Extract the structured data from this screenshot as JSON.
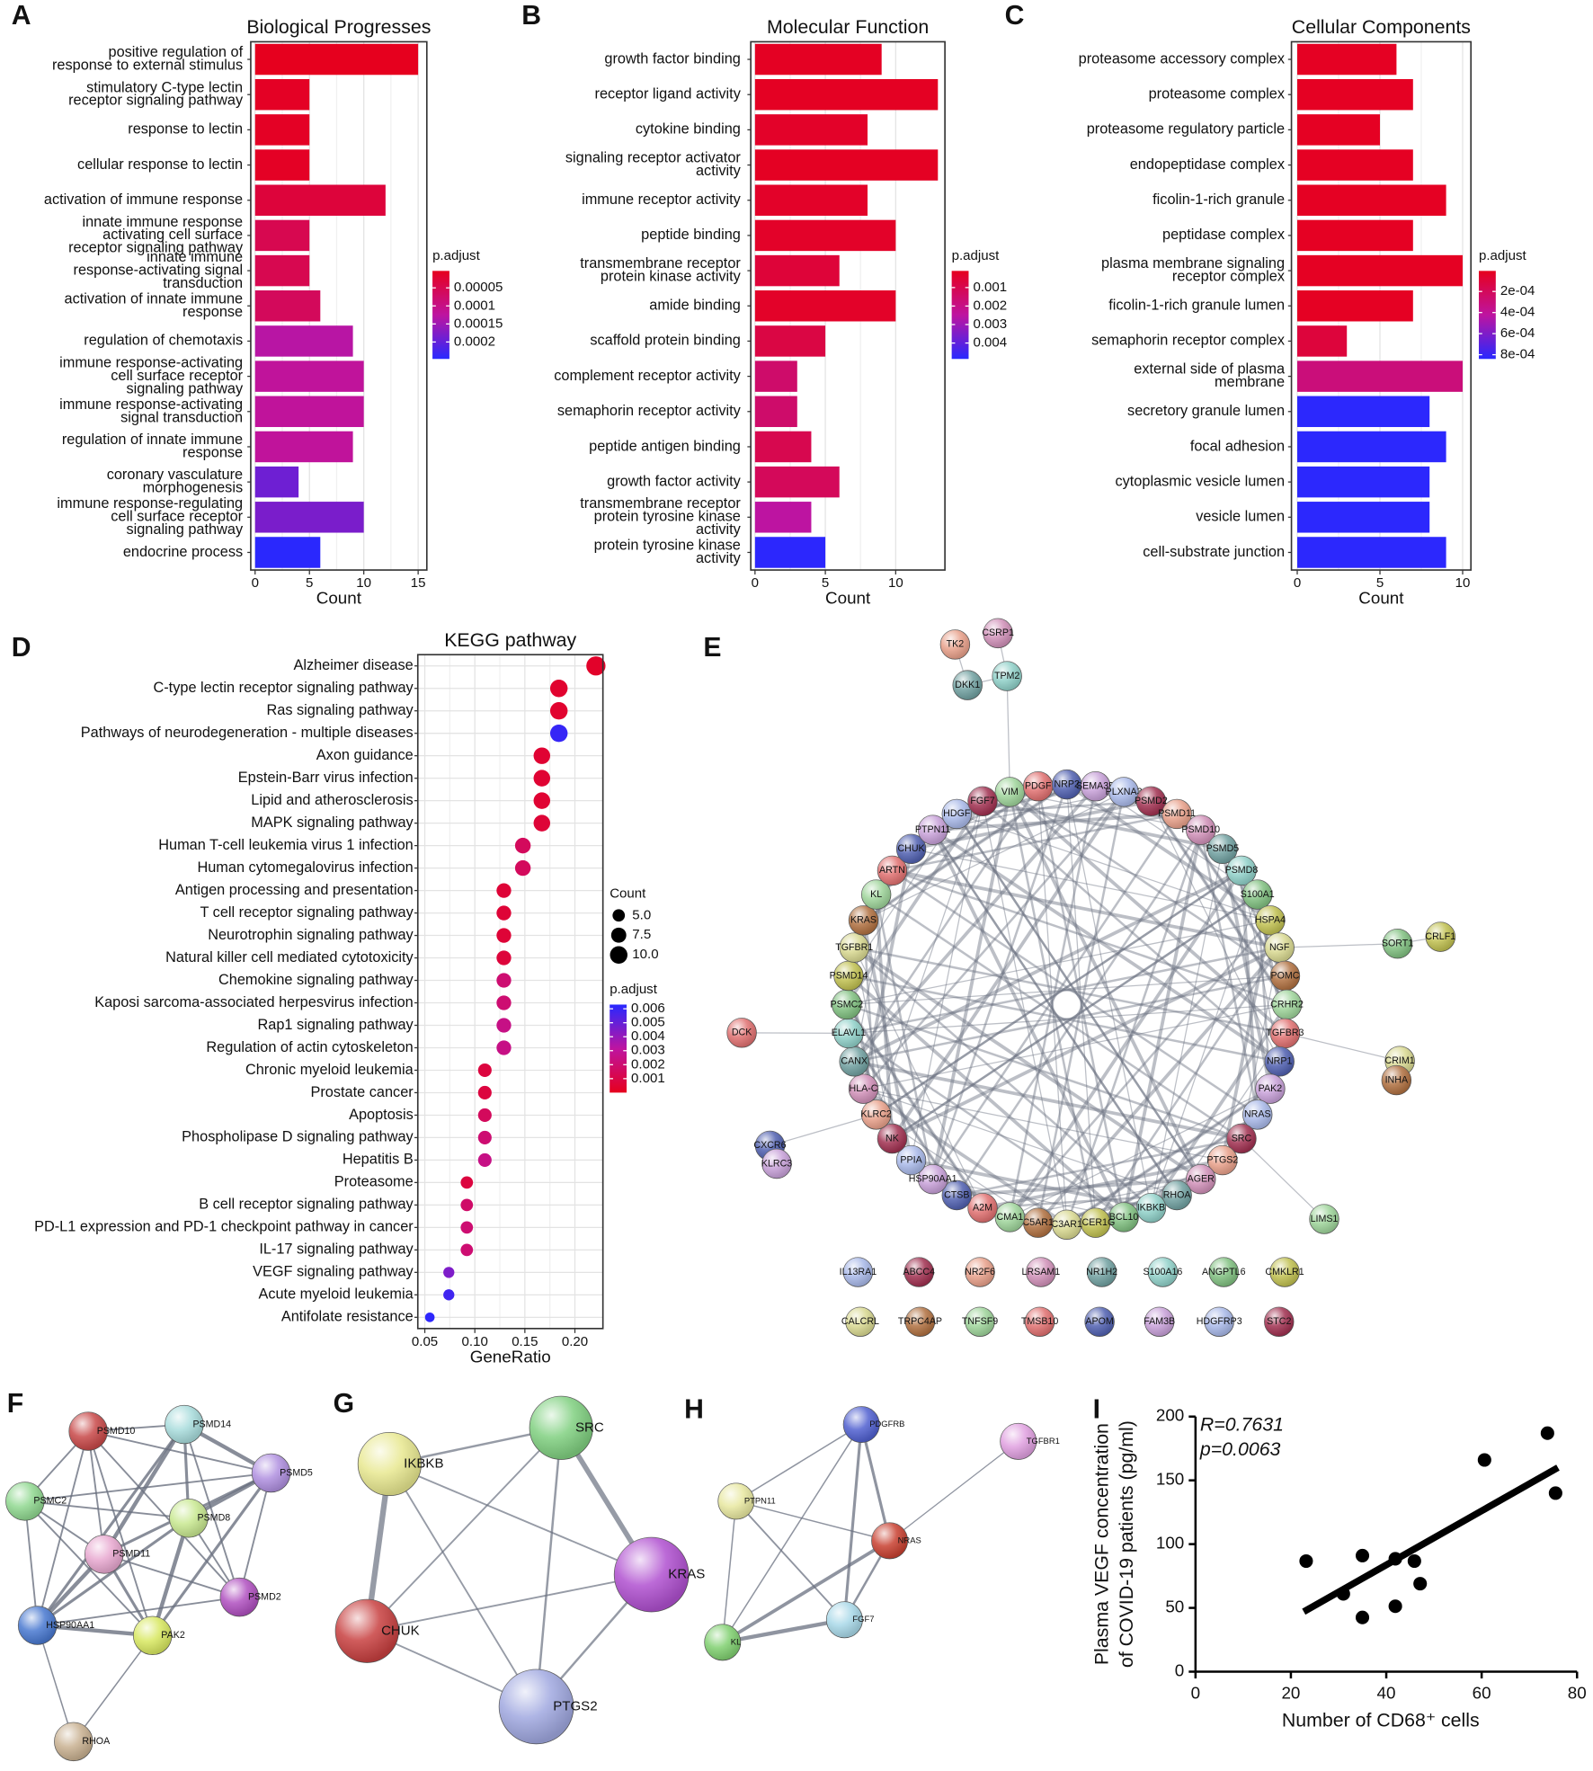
{
  "chart_data": [
    {
      "type": "barh",
      "panel_label": "A",
      "title": "Biological Progresses",
      "xlabel": "Count",
      "categories": [
        [
          "positive regulation of",
          "response to external stimulus"
        ],
        [
          "stimulatory C-type lectin",
          "receptor signaling pathway"
        ],
        [
          "response to lectin"
        ],
        [
          "cellular response to lectin"
        ],
        [
          "activation of immune response"
        ],
        [
          "innate immune response",
          "activating cell surface",
          "receptor signaling pathway"
        ],
        [
          "innate immune",
          "response-activating signal",
          "transduction"
        ],
        [
          "activation of innate immune",
          "response"
        ],
        [
          "regulation of chemotaxis"
        ],
        [
          "immune response-activating",
          "cell surface receptor",
          "signaling pathway"
        ],
        [
          "immune response-activating",
          "signal transduction"
        ],
        [
          "regulation of innate immune",
          "response"
        ],
        [
          "coronary vasculature",
          "morphogenesis"
        ],
        [
          "immune response-regulating",
          "cell surface receptor",
          "signaling pathway"
        ],
        [
          "endocrine process"
        ]
      ],
      "values": [
        15,
        5,
        5,
        5,
        12,
        5,
        5,
        6,
        9,
        10,
        10,
        9,
        4,
        10,
        6
      ],
      "padjust": [
        3e-06,
        1e-05,
        1e-05,
        1e-05,
        3e-05,
        5e-05,
        5e-05,
        6e-05,
        0.00013,
        0.00012,
        0.00012,
        0.00012,
        0.00019,
        0.00018,
        0.000245
      ],
      "xlim": [
        -0.4,
        15.8
      ],
      "xticks": [
        0,
        5,
        10,
        15
      ],
      "grid": true,
      "colorbar": {
        "title": "p.adjust",
        "clim": [
          3e-06,
          0.000247
        ],
        "ticks": [
          5e-05,
          0.0001,
          0.00015,
          0.0002
        ]
      }
    },
    {
      "type": "barh",
      "panel_label": "B",
      "title": "Molecular Function",
      "xlabel": "Count",
      "categories": [
        [
          "growth factor binding"
        ],
        [
          "receptor ligand activity"
        ],
        [
          "cytokine binding"
        ],
        [
          "signaling receptor activator",
          "activity"
        ],
        [
          "immune receptor activity"
        ],
        [
          "peptide binding"
        ],
        [
          "transmembrane receptor",
          "protein kinase activity"
        ],
        [
          "amide binding"
        ],
        [
          "scaffold protein binding"
        ],
        [
          "complement receptor activity"
        ],
        [
          "semaphorin receptor activity"
        ],
        [
          "peptide antigen binding"
        ],
        [
          "growth factor activity"
        ],
        [
          "transmembrane receptor",
          "protein tyrosine kinase",
          "activity"
        ],
        [
          "protein tyrosine kinase",
          "activity"
        ]
      ],
      "values": [
        9,
        13,
        8,
        13,
        8,
        10,
        6,
        10,
        5,
        3,
        3,
        4,
        6,
        4,
        5
      ],
      "padjust": [
        0.0002,
        0.0002,
        0.0003,
        0.0002,
        0.0003,
        0.0003,
        0.0006,
        0.0003,
        0.0008,
        0.0015,
        0.0015,
        0.001,
        0.0012,
        0.0025,
        0.0048
      ],
      "xlim": [
        -0.3,
        13.5
      ],
      "xticks": [
        0,
        5,
        10
      ],
      "grid": true,
      "colorbar": {
        "title": "p.adjust",
        "clim": [
          0.0001,
          0.00486
        ],
        "ticks": [
          0.001,
          0.002,
          0.003,
          0.004
        ]
      }
    },
    {
      "type": "barh",
      "panel_label": "C",
      "title": "Cellular Components",
      "xlabel": "Count",
      "categories": [
        [
          "proteasome accessory complex"
        ],
        [
          "proteasome complex"
        ],
        [
          "proteasome regulatory particle"
        ],
        [
          "endopeptidase complex"
        ],
        [
          "ficolin-1-rich granule"
        ],
        [
          "peptidase complex"
        ],
        [
          "plasma membrane signaling",
          "receptor complex"
        ],
        [
          "ficolin-1-rich granule lumen"
        ],
        [
          "semaphorin receptor complex"
        ],
        [
          "external side of plasma",
          "membrane"
        ],
        [
          "secretory granule lumen"
        ],
        [
          "focal adhesion"
        ],
        [
          "cytoplasmic vesicle lumen"
        ],
        [
          "vesicle lumen"
        ],
        [
          "cell-substrate junction"
        ]
      ],
      "values": [
        6,
        7,
        5,
        7,
        9,
        7,
        10,
        7,
        3,
        10,
        8,
        9,
        8,
        8,
        9
      ],
      "padjust": [
        2e-05,
        2e-05,
        2e-05,
        2e-05,
        2e-05,
        2e-05,
        2e-05,
        2e-05,
        0.0001,
        0.0003,
        0.00083,
        0.00083,
        0.00083,
        0.00083,
        0.00083
      ],
      "xlim": [
        -0.35,
        10.5
      ],
      "xticks": [
        0,
        5,
        10
      ],
      "grid": true,
      "colorbar": {
        "title": "p.adjust",
        "clim": [
          5e-06,
          0.00084
        ],
        "ticks": [
          {
            "value": 0.0002,
            "label": "2e-04"
          },
          {
            "value": 0.0004,
            "label": "4e-04"
          },
          {
            "value": 0.0006,
            "label": "6e-04"
          },
          {
            "value": 0.0008,
            "label": "8e-04"
          }
        ]
      }
    },
    {
      "type": "dot",
      "panel_label": "D",
      "title": "KEGG pathway",
      "xlabel": "GeneRatio",
      "categories": [
        "Alzheimer disease",
        "C-type lectin receptor signaling pathway",
        "Ras signaling pathway",
        "Pathways of neurodegeneration - multiple diseases",
        "Axon guidance",
        "Epstein-Barr virus infection",
        "Lipid and atherosclerosis",
        "MAPK signaling pathway",
        "Human T-cell leukemia virus 1 infection",
        "Human cytomegalovirus infection",
        "Antigen processing and presentation",
        "T cell receptor signaling pathway",
        "Neurotrophin signaling pathway",
        "Natural killer cell mediated cytotoxicity",
        "Chemokine signaling pathway",
        "Kaposi sarcoma-associated herpesvirus infection",
        "Rap1 signaling pathway",
        "Regulation of actin cytoskeleton",
        "Chronic myeloid leukemia",
        "Prostate cancer",
        "Apoptosis",
        "Phospholipase D signaling pathway",
        "Hepatitis B",
        "Proteasome",
        "B cell receptor signaling pathway",
        "PD-L1 expression and PD-1 checkpoint pathway in cancer",
        "IL-17 signaling pathway",
        "VEGF signaling pathway",
        "Acute myeloid leukemia",
        "Antifolate resistance"
      ],
      "values": [
        0.221,
        0.184,
        0.184,
        0.184,
        0.167,
        0.167,
        0.167,
        0.167,
        0.148,
        0.148,
        0.129,
        0.129,
        0.129,
        0.129,
        0.129,
        0.129,
        0.129,
        0.129,
        0.11,
        0.11,
        0.11,
        0.11,
        0.11,
        0.092,
        0.092,
        0.092,
        0.092,
        0.074,
        0.074,
        0.055
      ],
      "sizes": [
        12,
        10,
        10,
        10,
        9,
        9,
        9,
        9,
        8,
        8,
        7,
        7,
        7,
        7,
        7,
        7,
        7,
        7,
        6,
        6,
        6,
        6,
        6,
        5,
        5,
        5,
        5,
        4,
        4,
        3
      ],
      "padjust": [
        0.0003,
        0.0004,
        0.0004,
        0.006,
        0.0005,
        0.0005,
        0.0005,
        0.0006,
        0.0015,
        0.0015,
        0.0006,
        0.0006,
        0.0006,
        0.0007,
        0.002,
        0.002,
        0.0025,
        0.0025,
        0.0008,
        0.0008,
        0.0015,
        0.002,
        0.0025,
        0.0008,
        0.0018,
        0.002,
        0.002,
        0.0045,
        0.0058,
        0.0062
      ],
      "xlim": [
        0.043,
        0.228
      ],
      "xticks": [
        0.05,
        {
          "value": 0.1,
          "label": "0.10"
        },
        0.15,
        {
          "value": 0.2,
          "label": "0.20"
        }
      ],
      "grid": true,
      "size_legend": {
        "title": "Count",
        "ticks": [
          {
            "value": 5,
            "label": "5.0"
          },
          7.5,
          {
            "value": 10,
            "label": "10.0"
          }
        ]
      },
      "colorbar": {
        "title": "p.adjust",
        "clim": [
          0,
          0.0063
        ],
        "ticks": [
          0.006,
          0.005,
          0.004,
          0.003,
          0.002,
          0.001
        ]
      }
    },
    {
      "type": "scatter",
      "panel_label": "I",
      "xlabel": "Number of CD68⁺ cells",
      "ylabel": [
        "Plasma VEGF concentration",
        "of COVID-19 patients (pg/ml)"
      ],
      "annotations": [
        "R=0.7631",
        "p=0.0063"
      ],
      "x": [
        23.2,
        31,
        35,
        35,
        41.9,
        45.9,
        41.9,
        47.1,
        60.6,
        73.8,
        75.5
      ],
      "y": [
        86.7,
        61,
        91,
        42.5,
        88.5,
        86.7,
        51.3,
        69,
        166,
        187,
        140
      ],
      "fit": {
        "x": [
          22.7,
          76
        ],
        "y": [
          47,
          160
        ]
      },
      "xlim": [
        0,
        80
      ],
      "xticks": [
        0,
        20,
        40,
        60,
        80
      ],
      "ylim": [
        0,
        200
      ],
      "yticks": [
        0,
        50,
        100,
        150,
        200
      ]
    }
  ],
  "networks": [
    {
      "label": "E",
      "nodes": [
        "VIM",
        "PDGF",
        "NRP2",
        "SEMA3B",
        "PLXNA3",
        "PSMD2",
        "PSMD11",
        "PSMD10",
        "PSMD5",
        "PSMD8",
        "S100A1",
        "HSPA4",
        "NGF",
        "POMC",
        "CRHR2",
        "TGFBR3",
        "NRP1",
        "PAK2",
        "NRAS",
        "SRC",
        "PTGS2",
        "AGER",
        "RHOA",
        "IKBKB",
        "BCL10",
        "FCER1G",
        "C3AR1",
        "C5AR1",
        "CMA1",
        "A2M",
        "CTSB",
        "HSP90AA1",
        "PPIA",
        "NK",
        "KLRC2",
        "HLA-C",
        "CANX",
        "ELAVL1",
        "PSMC2",
        "PSMD14",
        "TGFBR1",
        "KRAS",
        "KL",
        "ARTN",
        "CHUK",
        "PTPN11",
        "HDGF",
        "FGF7",
        "TK2",
        "CSRP1",
        "DKK1",
        "TPM2",
        "SORT1",
        "CRLF1",
        "CRIM1",
        "INHA",
        "LIMS1",
        "DCK",
        "CXCR6",
        "KLRC3",
        "IL13RA1",
        "ABCC4",
        "NR2F6",
        "LRSAM1",
        "NR1H2",
        "S100A16",
        "ANGPTL6",
        "CMKLR1",
        "CALCRL",
        "TRPC4AP",
        "TNFSF9",
        "TMSB10",
        "APOM",
        "FAM3B",
        "HDGFRP3",
        "STC2"
      ]
    },
    {
      "label": "F",
      "nodes": [
        "PSMD10",
        "PSMD14",
        "PSMD5",
        "PSMC2",
        "PSMD8",
        "PSMD11",
        "PSMD2",
        "HSP90AA1",
        "PAK2",
        "RHOA"
      ]
    },
    {
      "label": "G",
      "nodes": [
        "IKBKB",
        "SRC",
        "KRAS",
        "CHUK",
        "PTGS2"
      ]
    },
    {
      "label": "H",
      "nodes": [
        "PDGFRB",
        "TGFBR1",
        "PTPN11",
        "NRAS",
        "KL",
        "FGF7"
      ]
    }
  ]
}
